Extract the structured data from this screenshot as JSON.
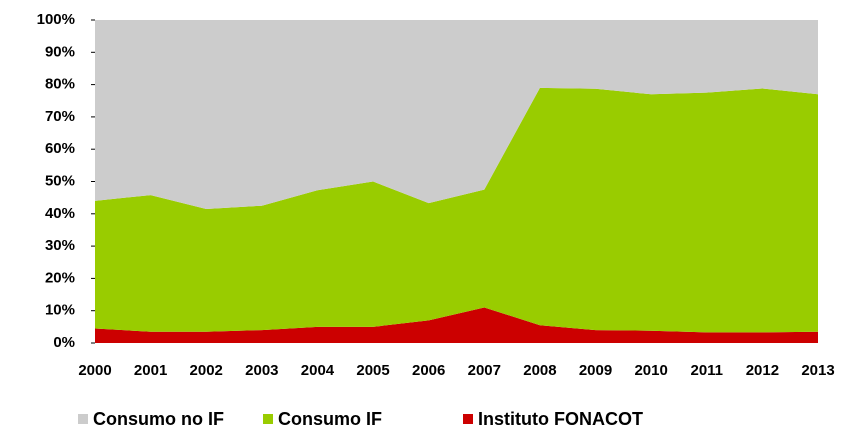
{
  "chart_data": {
    "type": "area",
    "stacked": true,
    "categories": [
      "2000",
      "2001",
      "2002",
      "2003",
      "2004",
      "2005",
      "2006",
      "2007",
      "2008",
      "2009",
      "2010",
      "2011",
      "2012",
      "2013"
    ],
    "series": [
      {
        "name": "Consumo no IF",
        "color": "#cccccc",
        "values": [
          56,
          54.2,
          58.5,
          57.5,
          52.7,
          50,
          56.7,
          52.5,
          21,
          21.3,
          23,
          22.5,
          21.2,
          23
        ]
      },
      {
        "name": "Consumo IF",
        "color": "#99cc00",
        "values": [
          39.5,
          42.3,
          38,
          38.5,
          42.3,
          45,
          36.3,
          36.5,
          73.5,
          74.7,
          73.2,
          74.2,
          75.5,
          73.5
        ]
      },
      {
        "name": "Instituto FONACOT",
        "color": "#cc0000",
        "values": [
          4.5,
          3.5,
          3.5,
          4,
          5,
          5,
          7,
          11,
          5.5,
          4,
          3.8,
          3.3,
          3.3,
          3.5
        ]
      }
    ],
    "ylim": [
      0,
      100
    ],
    "yticks": [
      {
        "value": 0,
        "label": "0%"
      },
      {
        "value": 10,
        "label": "10%"
      },
      {
        "value": 20,
        "label": "20%"
      },
      {
        "value": 30,
        "label": "30%"
      },
      {
        "value": 40,
        "label": "40%"
      },
      {
        "value": 50,
        "label": "50%"
      },
      {
        "value": 60,
        "label": "60%"
      },
      {
        "value": 70,
        "label": "70%"
      },
      {
        "value": 80,
        "label": "80%"
      },
      {
        "value": 90,
        "label": "90%"
      },
      {
        "value": 100,
        "label": "100%"
      }
    ],
    "legend": "bottom"
  }
}
